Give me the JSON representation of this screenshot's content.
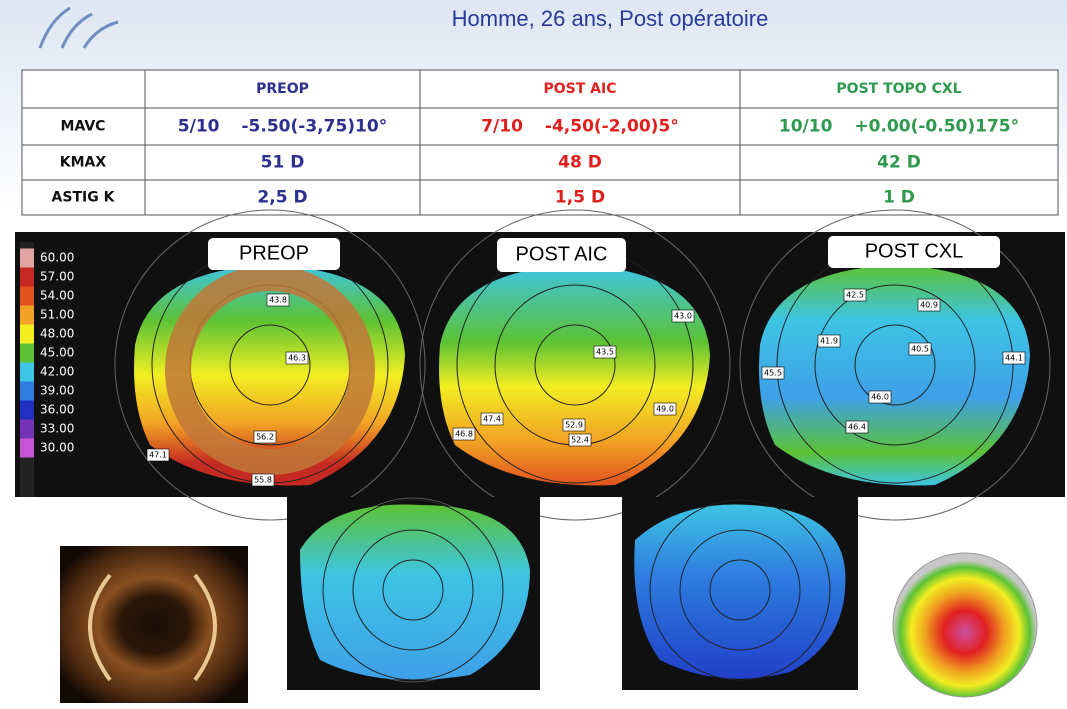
{
  "title": "Homme, 26 ans, Post opératoire",
  "table": {
    "columns": [
      {
        "label": "PREOP",
        "color": "#2b2f8f"
      },
      {
        "label": "POST AIC",
        "color": "#e0201c"
      },
      {
        "label": "POST TOPO CXL",
        "color": "#2e9a4e"
      }
    ],
    "rows": [
      {
        "label": "MAVC",
        "cells": [
          [
            "5/10",
            "-5.50(-3,75)10°"
          ],
          [
            "7/10",
            "-4,50(-2,00)5°"
          ],
          [
            "10/10",
            "+0.00(-0.50)175°"
          ]
        ]
      },
      {
        "label": "KMAX",
        "cells": [
          [
            "51 D"
          ],
          [
            "48 D"
          ],
          [
            "42 D"
          ]
        ]
      },
      {
        "label": "ASTIG K",
        "cells": [
          [
            "2,5 D"
          ],
          [
            "1,5 D"
          ],
          [
            "1 D"
          ]
        ]
      }
    ]
  },
  "scale": [
    {
      "label": "60.00",
      "color": "#e2a3a3"
    },
    {
      "label": "57.00",
      "color": "#c42a22"
    },
    {
      "label": "54.00",
      "color": "#e0521e"
    },
    {
      "label": "51.00",
      "color": "#f2a224"
    },
    {
      "label": "48.00",
      "color": "#f2ee22"
    },
    {
      "label": "45.00",
      "color": "#5cc234"
    },
    {
      "label": "42.00",
      "color": "#3ec4e4"
    },
    {
      "label": "39.00",
      "color": "#2e7ee0"
    },
    {
      "label": "36.00",
      "color": "#2030c0"
    },
    {
      "label": "33.00",
      "color": "#7432b4"
    },
    {
      "label": "30.00",
      "color": "#c654d4"
    }
  ],
  "maps": [
    {
      "label": "PREOP",
      "values": [
        "43.8",
        "46.3",
        "56.2",
        "55.8",
        "47.1"
      ]
    },
    {
      "label": "POST AIC",
      "values": [
        "43.0",
        "43.5",
        "52.9",
        "52.4",
        "49.0",
        "47.4",
        "46.8"
      ]
    },
    {
      "label": "POST CXL",
      "values": [
        "42.5",
        "40.9",
        "41.9",
        "40.5",
        "44.1",
        "45.5",
        "46.0",
        "46.4"
      ]
    }
  ]
}
